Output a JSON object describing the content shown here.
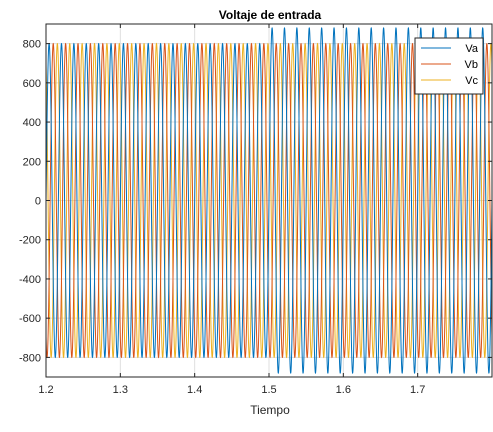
{
  "chart_data": {
    "type": "line",
    "title": "Voltaje de entrada",
    "xlabel": "Tiempo",
    "ylabel": "",
    "xlim": [
      1.2,
      1.8
    ],
    "ylim": [
      -900,
      900
    ],
    "xticks": [
      1.2,
      1.3,
      1.4,
      1.5,
      1.6,
      1.7
    ],
    "xtick_labels": [
      "1.2",
      "1.3",
      "1.4",
      "1.5",
      "1.6",
      "1.7"
    ],
    "yticks": [
      800,
      600,
      400,
      200,
      0,
      -200,
      -400,
      -600,
      -800
    ],
    "ytick_labels": [
      "800",
      "600",
      "400",
      "200",
      "0",
      "-200",
      "-400",
      "-600",
      "-800"
    ],
    "grid": true,
    "legend": "top-right",
    "frequency_hz": 60,
    "series": [
      {
        "name": "Va",
        "color": "#0072BD",
        "phase_deg": 0,
        "segments": [
          {
            "t_start": 1.2,
            "t_end": 1.5,
            "amplitude": 800
          },
          {
            "t_start": 1.5,
            "t_end": 1.8,
            "amplitude": 880
          }
        ]
      },
      {
        "name": "Vb",
        "color": "#D95319",
        "phase_deg": -120,
        "segments": [
          {
            "t_start": 1.2,
            "t_end": 1.5,
            "amplitude": 800
          },
          {
            "t_start": 1.5,
            "t_end": 1.8,
            "amplitude": 800
          }
        ]
      },
      {
        "name": "Vc",
        "color": "#EDB120",
        "phase_deg": 120,
        "segments": [
          {
            "t_start": 1.2,
            "t_end": 1.5,
            "amplitude": 800
          },
          {
            "t_start": 1.5,
            "t_end": 1.8,
            "amplitude": 800
          }
        ]
      }
    ]
  }
}
